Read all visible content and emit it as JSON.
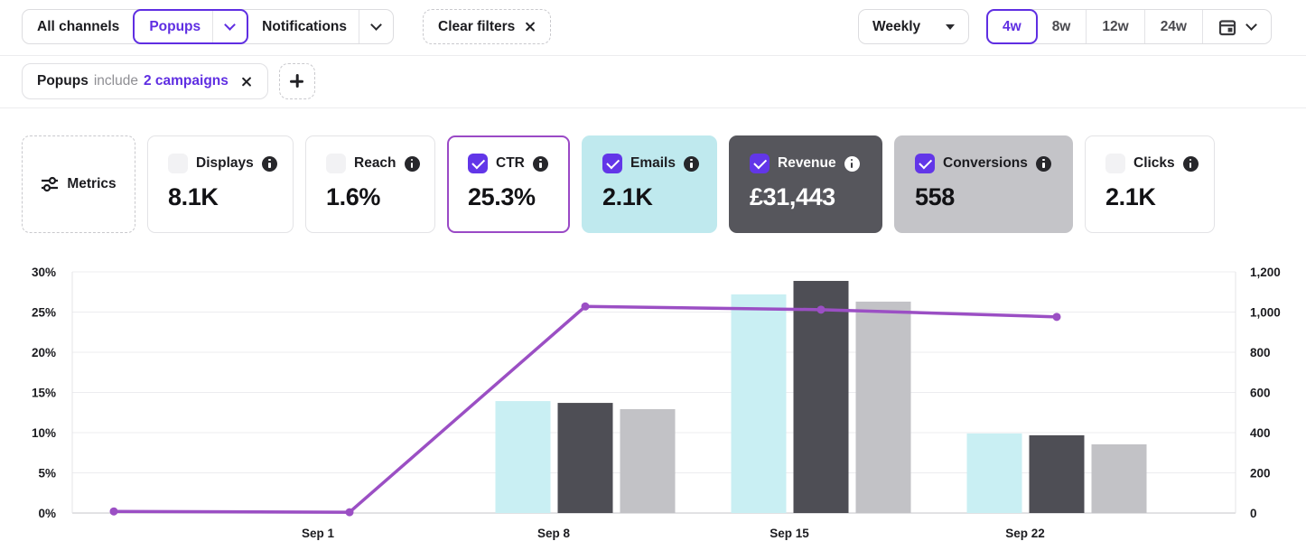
{
  "toolbar": {
    "channel_tabs": [
      {
        "label": "All channels",
        "selected": false,
        "has_dropdown": false
      },
      {
        "label": "Popups",
        "selected": true,
        "has_dropdown": true
      },
      {
        "label": "Notifications",
        "selected": false,
        "has_dropdown": true
      }
    ],
    "clear_filters_label": "Clear filters",
    "granularity_select": {
      "value": "Weekly"
    },
    "range_options": [
      {
        "label": "4w",
        "selected": true
      },
      {
        "label": "8w",
        "selected": false
      },
      {
        "label": "12w",
        "selected": false
      },
      {
        "label": "24w",
        "selected": false
      }
    ]
  },
  "filter_chip": {
    "channel": "Popups",
    "relation": "include",
    "target": "2 campaigns"
  },
  "metrics": {
    "button_label": "Metrics",
    "cards": [
      {
        "label": "Displays",
        "value": "8.1K",
        "checked": false,
        "style": "plain"
      },
      {
        "label": "Reach",
        "value": "1.6%",
        "checked": false,
        "style": "plain"
      },
      {
        "label": "CTR",
        "value": "25.3%",
        "checked": true,
        "style": "outlined-purple"
      },
      {
        "label": "Emails",
        "value": "2.1K",
        "checked": true,
        "style": "cyan"
      },
      {
        "label": "Revenue",
        "value": "£31,443",
        "checked": true,
        "style": "dark"
      },
      {
        "label": "Conversions",
        "value": "558",
        "checked": true,
        "style": "gray"
      },
      {
        "label": "Clicks",
        "value": "2.1K",
        "checked": false,
        "style": "plain"
      }
    ]
  },
  "icons": {
    "chevron-down": "css-chevron",
    "dropdown-triangle": "css-triangle",
    "close": "css-x",
    "plus": "css-plus",
    "calendar": "inline-svg",
    "sliders": "inline-svg",
    "info": "css-circle-i",
    "checkbox-check": "css-checkmark"
  },
  "colors": {
    "accent_purple": "#5f2ee2",
    "checkbox_purple": "#6236e8",
    "ctr_card_outline": "#9a49c6",
    "line_purple": "#9b4fc4",
    "bar_emails": "#c9eff3",
    "bar_revenue": "#4e4e55",
    "bar_conversions": "#c2c2c6",
    "card_emails_bg": "#bfe9ee",
    "card_revenue_bg": "#56565c",
    "card_conversions_bg": "#c4c4c8"
  },
  "chart_data": {
    "type": "combo-bar-line",
    "categories": [
      "",
      "Sep 1",
      "Sep 8",
      "Sep 15",
      "Sep 22"
    ],
    "bar_series": [
      {
        "name": "Emails",
        "axis": "right",
        "color": "#c9eff3",
        "values": [
          null,
          0,
          557,
          1088,
          396
        ]
      },
      {
        "name": "Revenue",
        "axis": "right",
        "color": "#4e4e55",
        "values": [
          null,
          0,
          548,
          1155,
          387
        ]
      },
      {
        "name": "Conversions",
        "axis": "right",
        "color": "#c2c2c6",
        "values": [
          null,
          0,
          517,
          1052,
          342
        ]
      }
    ],
    "line_series": {
      "name": "CTR",
      "axis": "left",
      "color": "#9b4fc4",
      "values": [
        0.2,
        0.1,
        25.7,
        25.3,
        24.4
      ]
    },
    "left_axis": {
      "min": 0,
      "max": 30,
      "tick_labels": [
        "0%",
        "5%",
        "10%",
        "15%",
        "20%",
        "25%",
        "30%"
      ]
    },
    "right_axis": {
      "min": 0,
      "max": 1200,
      "tick_labels": [
        "0",
        "200",
        "400",
        "600",
        "800",
        "1,000",
        "1,200"
      ]
    },
    "grid": true,
    "legend": false
  }
}
